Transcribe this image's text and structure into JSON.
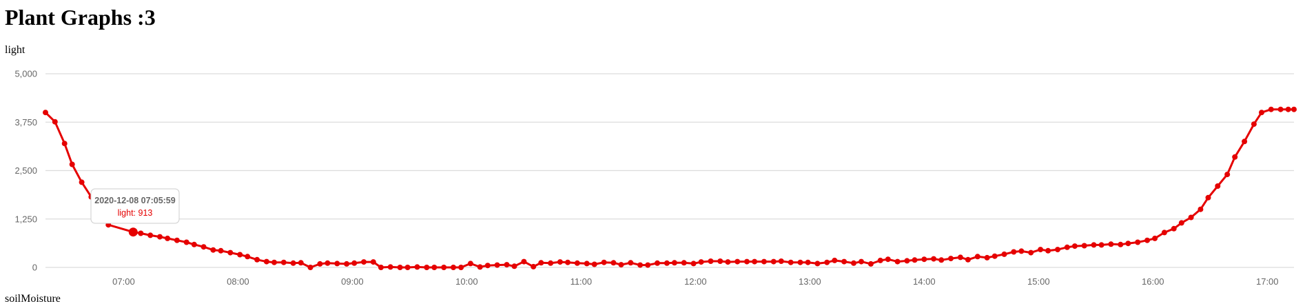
{
  "page": {
    "title": "Plant Graphs :3"
  },
  "sections": {
    "light_label": "light",
    "soil_label": "soilMoisture"
  },
  "colors": {
    "series": "#e50000",
    "grid": "#dcdcdc",
    "tick_text": "#666666",
    "tooltip_value": "#e50000"
  },
  "tooltip": {
    "title": "2020-12-08 07:05:59",
    "value_text": "light: 913",
    "point_index": 8
  },
  "chart_data": {
    "type": "line",
    "title": "",
    "xlabel": "",
    "ylabel": "",
    "grid": true,
    "ylim": [
      0,
      5000
    ],
    "y_ticks": [
      0,
      1250,
      2500,
      3750,
      5000
    ],
    "y_tick_labels": [
      "0",
      "1,250",
      "2,500",
      "3,750",
      "5,000"
    ],
    "x_tick_labels": [
      "07:00",
      "08:00",
      "09:00",
      "10:00",
      "11:00",
      "12:00",
      "13:00",
      "14:00",
      "15:00",
      "16:00",
      "17:00"
    ],
    "xlim": [
      "06:19",
      "17:14"
    ],
    "series": [
      {
        "name": "light",
        "x": [
          "06:19",
          "06:24",
          "06:29",
          "06:33",
          "06:38",
          "06:43",
          "06:47",
          "06:52",
          "07:05",
          "07:09",
          "07:14",
          "07:19",
          "07:23",
          "07:28",
          "07:33",
          "07:37",
          "07:42",
          "07:47",
          "07:51",
          "07:56",
          "08:01",
          "08:05",
          "08:10",
          "08:15",
          "08:19",
          "08:24",
          "08:29",
          "08:33",
          "08:38",
          "08:43",
          "08:47",
          "08:52",
          "08:57",
          "09:01",
          "09:06",
          "09:11",
          "09:15",
          "09:20",
          "09:25",
          "09:29",
          "09:34",
          "09:39",
          "09:43",
          "09:48",
          "09:53",
          "09:57",
          "10:02",
          "10:07",
          "10:11",
          "10:16",
          "10:21",
          "10:25",
          "10:30",
          "10:35",
          "10:39",
          "10:44",
          "10:49",
          "10:53",
          "10:58",
          "11:03",
          "11:07",
          "11:12",
          "11:17",
          "11:21",
          "11:26",
          "11:31",
          "11:35",
          "11:40",
          "11:45",
          "11:49",
          "11:54",
          "11:59",
          "12:03",
          "12:08",
          "12:13",
          "12:17",
          "12:22",
          "12:27",
          "12:31",
          "12:36",
          "12:41",
          "12:45",
          "12:50",
          "12:55",
          "12:59",
          "13:04",
          "13:09",
          "13:13",
          "13:18",
          "13:23",
          "13:27",
          "13:32",
          "13:37",
          "13:41",
          "13:46",
          "13:51",
          "13:55",
          "14:00",
          "14:05",
          "14:09",
          "14:14",
          "14:19",
          "14:23",
          "14:28",
          "14:33",
          "14:37",
          "14:42",
          "14:47",
          "14:51",
          "14:56",
          "15:01",
          "15:05",
          "15:10",
          "15:15",
          "15:19",
          "15:24",
          "15:29",
          "15:33",
          "15:38",
          "15:43",
          "15:47",
          "15:52",
          "15:57",
          "16:01",
          "16:06",
          "16:11",
          "16:15",
          "16:20",
          "16:25",
          "16:29",
          "16:34",
          "16:39",
          "16:43",
          "16:48",
          "16:53",
          "16:57",
          "17:02",
          "17:07",
          "17:11",
          "17:14"
        ],
        "values": [
          4000,
          3760,
          3200,
          2660,
          2200,
          1820,
          1420,
          1100,
          913,
          880,
          830,
          790,
          750,
          700,
          650,
          590,
          530,
          450,
          430,
          380,
          330,
          280,
          200,
          150,
          130,
          130,
          110,
          120,
          0,
          90,
          110,
          100,
          90,
          110,
          140,
          140,
          0,
          10,
          0,
          0,
          10,
          0,
          0,
          0,
          0,
          0,
          100,
          10,
          50,
          60,
          70,
          30,
          150,
          20,
          120,
          110,
          140,
          130,
          110,
          100,
          80,
          130,
          120,
          70,
          120,
          60,
          60,
          110,
          110,
          120,
          120,
          100,
          140,
          160,
          160,
          140,
          150,
          150,
          150,
          150,
          150,
          160,
          130,
          130,
          130,
          100,
          130,
          180,
          150,
          110,
          150,
          90,
          180,
          210,
          150,
          170,
          190,
          210,
          220,
          190,
          230,
          260,
          200,
          280,
          250,
          290,
          340,
          400,
          420,
          380,
          460,
          430,
          460,
          520,
          550,
          560,
          580,
          580,
          600,
          590,
          620,
          650,
          700,
          750,
          900,
          1000,
          1150,
          1290,
          1500,
          1800,
          2100,
          2400,
          2850,
          3250,
          3700,
          4000,
          4080,
          4080,
          4080,
          4080
        ]
      }
    ]
  }
}
